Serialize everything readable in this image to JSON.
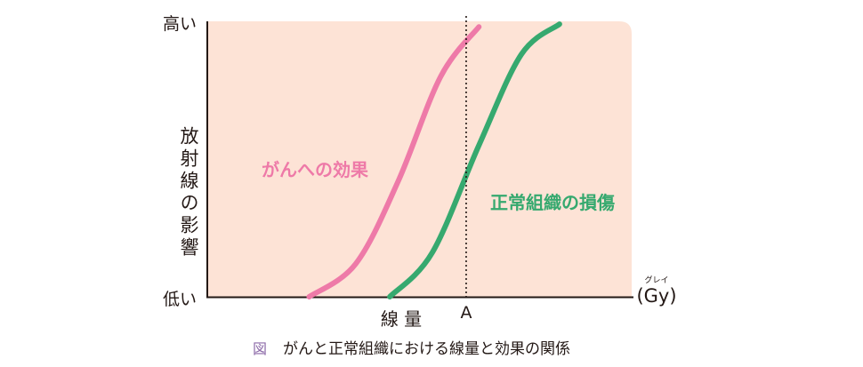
{
  "chart_data": {
    "type": "line",
    "x_axis": {
      "label": "線 量",
      "unit": "(Gy)",
      "unit_ruby": "グレイ",
      "marker_label": "A"
    },
    "y_axis": {
      "label": "放射線の影響",
      "top_label": "高い",
      "bottom_label": "低い"
    },
    "series": [
      {
        "name": "がんへの効果",
        "color": "#ee7aa8",
        "points": [
          [
            0.24,
            0.0
          ],
          [
            0.35,
            0.12
          ],
          [
            0.45,
            0.42
          ],
          [
            0.55,
            0.8
          ],
          [
            0.64,
            0.98
          ]
        ]
      },
      {
        "name": "正常組織の損傷",
        "color": "#36a96f",
        "points": [
          [
            0.43,
            0.0
          ],
          [
            0.53,
            0.16
          ],
          [
            0.64,
            0.55
          ],
          [
            0.74,
            0.88
          ],
          [
            0.83,
            0.99
          ]
        ]
      }
    ],
    "marker_x": 0.61,
    "caption_tag": "図",
    "caption": "がんと正常組織における線量と効果の関係",
    "colors": {
      "background": "#fde3d6",
      "caption_tag": "#8c6aa8"
    }
  }
}
